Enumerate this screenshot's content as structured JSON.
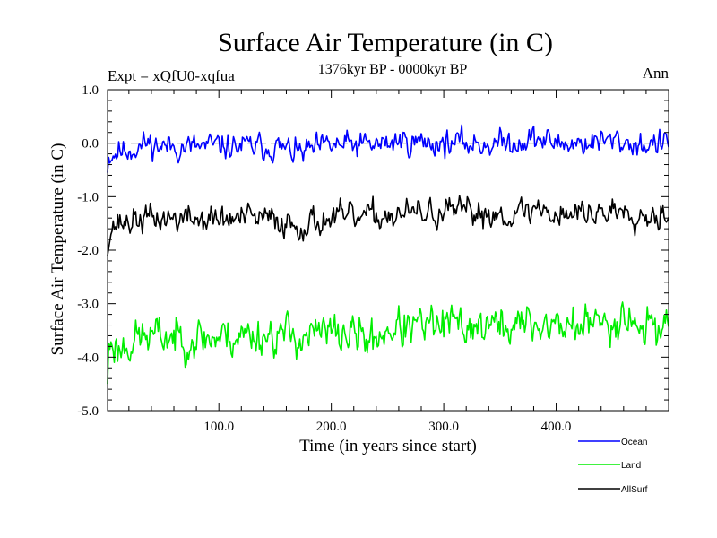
{
  "chart_data": {
    "type": "line",
    "title": "Surface Air Temperature (in C)",
    "subtitle": "1376kyr BP - 0000kyr BP",
    "expt_label": "Expt = xQfU0-xqfua",
    "period_label": "Ann",
    "xlabel": "Time (in years since start)",
    "ylabel": "Surface Air Temperature (in C)",
    "xlim": [
      1,
      500
    ],
    "ylim": [
      -5.0,
      1.0
    ],
    "xticks": [
      100,
      200,
      300,
      400
    ],
    "xtick_labels": [
      "100.0",
      "200.0",
      "300.0",
      "400.0"
    ],
    "yticks": [
      1.0,
      0.0,
      -1.0,
      -2.0,
      -3.0,
      -4.0,
      -5.0
    ],
    "ytick_labels": [
      "1.0",
      "0.0",
      "-1.0",
      "-2.0",
      "-3.0",
      "-4.0",
      "-5.0"
    ],
    "reference_line": 0.0,
    "series": [
      {
        "name": "Ocean",
        "color": "#0000ff",
        "start": -0.55,
        "early_mean": -0.08,
        "late_mean": 0.02,
        "noise": 0.11,
        "seed": 11,
        "x": [
          1,
          10,
          20,
          30,
          35,
          50,
          75,
          100,
          125,
          150,
          172,
          200,
          225,
          250,
          258,
          275,
          300,
          325,
          350,
          380,
          400,
          425,
          450,
          475,
          500
        ],
        "y": [
          -0.55,
          -0.3,
          -0.2,
          -0.05,
          0.15,
          -0.05,
          -0.1,
          -0.05,
          -0.1,
          -0.1,
          -0.45,
          -0.05,
          -0.05,
          0.0,
          0.2,
          0.1,
          0.05,
          0.0,
          0.0,
          0.25,
          0.0,
          0.0,
          0.1,
          -0.1,
          -0.05
        ]
      },
      {
        "name": "Land",
        "color": "#00ee00",
        "start": -4.5,
        "early_mean": -3.65,
        "late_mean": -3.35,
        "noise": 0.17,
        "seed": 23,
        "x": [
          1,
          5,
          10,
          20,
          30,
          50,
          75,
          100,
          125,
          150,
          175,
          200,
          225,
          235,
          250,
          275,
          300,
          325,
          350,
          375,
          400,
          425,
          450,
          460,
          475,
          500
        ],
        "y": [
          -4.5,
          -3.7,
          -4.3,
          -3.9,
          -3.6,
          -3.6,
          -3.7,
          -3.7,
          -3.6,
          -3.6,
          -3.7,
          -3.6,
          -3.7,
          -4.1,
          -3.4,
          -3.4,
          -3.3,
          -3.3,
          -3.4,
          -3.3,
          -3.4,
          -3.4,
          -3.3,
          -2.7,
          -3.6,
          -3.4
        ]
      },
      {
        "name": "AllSurf",
        "color": "#000000",
        "start": -2.1,
        "early_mean": -1.45,
        "late_mean": -1.28,
        "noise": 0.12,
        "seed": 37,
        "x": [
          1,
          5,
          10,
          20,
          30,
          50,
          75,
          100,
          125,
          150,
          172,
          200,
          225,
          250,
          275,
          300,
          325,
          350,
          375,
          380,
          400,
          425,
          450,
          460,
          475,
          500
        ],
        "y": [
          -2.1,
          -1.7,
          -1.6,
          -1.5,
          -1.4,
          -1.35,
          -1.4,
          -1.45,
          -1.4,
          -1.5,
          -1.8,
          -1.45,
          -1.45,
          -1.3,
          -1.25,
          -1.25,
          -1.2,
          -1.3,
          -1.25,
          -1.0,
          -1.3,
          -1.3,
          -1.25,
          -1.0,
          -1.45,
          -1.3
        ]
      }
    ]
  }
}
